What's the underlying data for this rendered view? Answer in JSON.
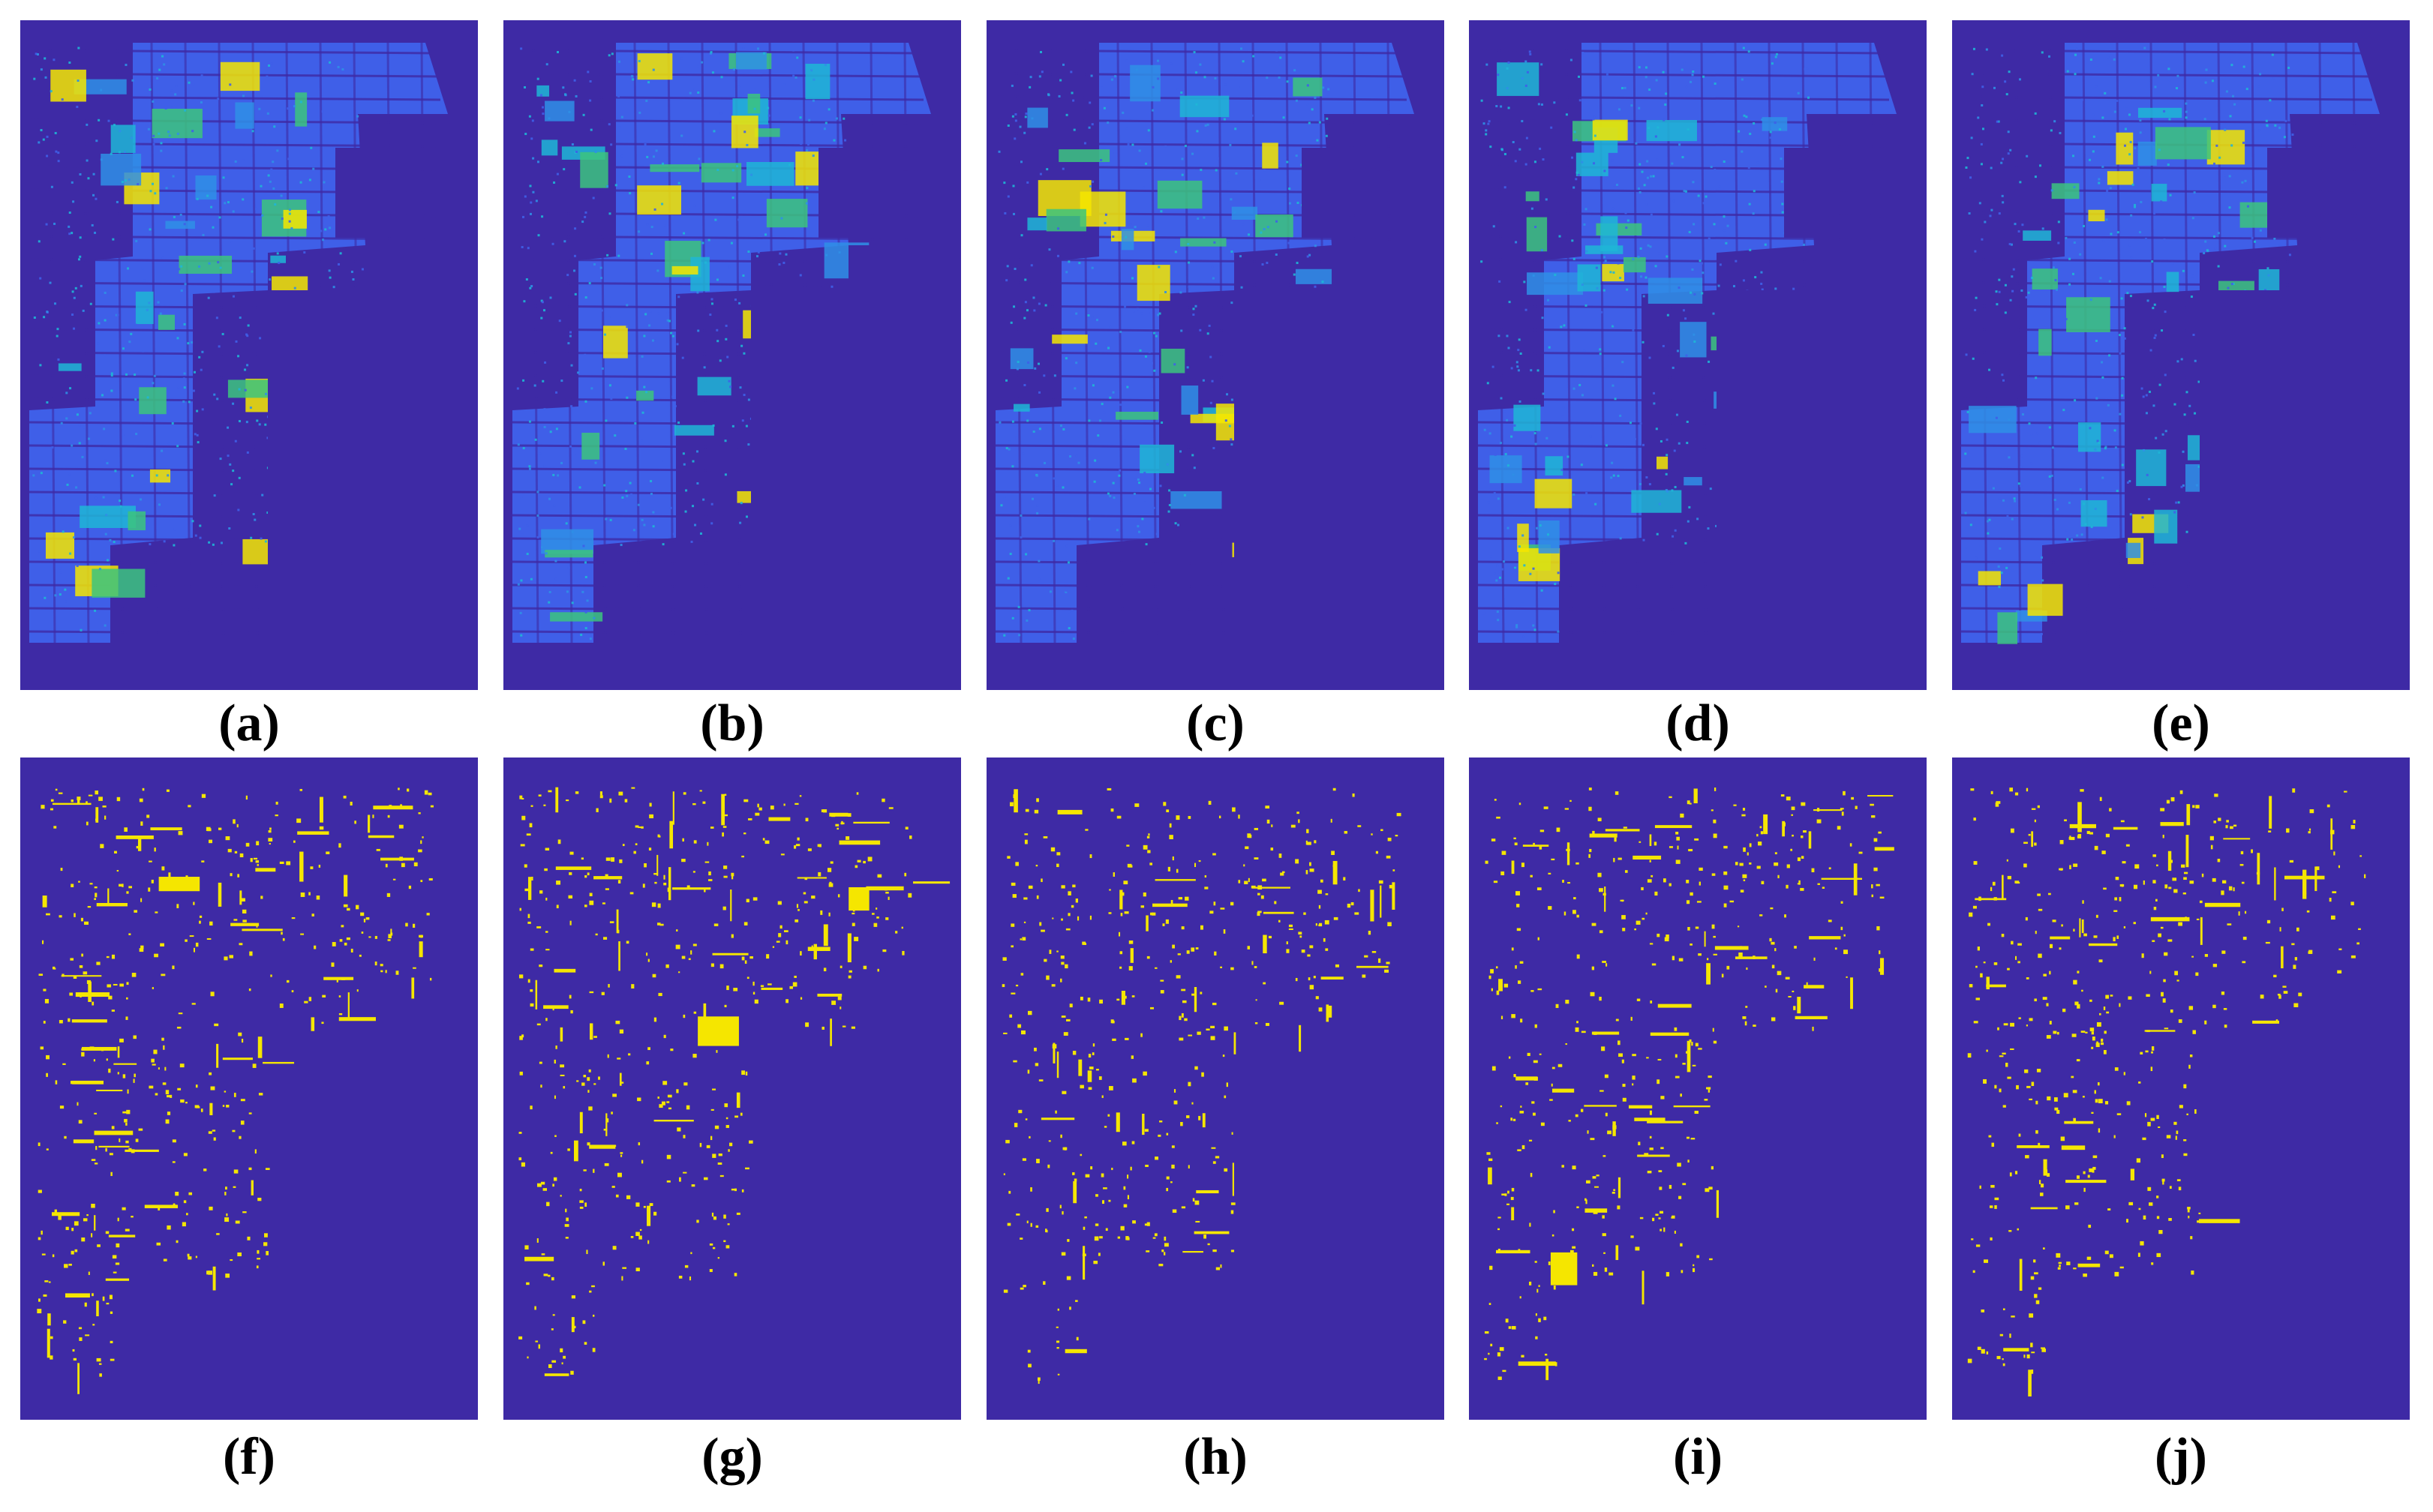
{
  "figure": {
    "background_color": "#3e2aa5",
    "field_color": "#3f5fe8",
    "class_colors": [
      "#3f5fe8",
      "#2f8fe6",
      "#1fb6d6",
      "#3cc47e",
      "#f5e600",
      "#e8a93a"
    ],
    "change_color": "#f5e600",
    "panels": [
      {
        "id": "a",
        "label": "(a)",
        "type": "classification-map"
      },
      {
        "id": "b",
        "label": "(b)",
        "type": "classification-map"
      },
      {
        "id": "c",
        "label": "(c)",
        "type": "classification-map"
      },
      {
        "id": "d",
        "label": "(d)",
        "type": "classification-map"
      },
      {
        "id": "e",
        "label": "(e)",
        "type": "classification-map"
      },
      {
        "id": "f",
        "label": "(f)",
        "type": "change-map"
      },
      {
        "id": "g",
        "label": "(g)",
        "type": "change-map"
      },
      {
        "id": "h",
        "label": "(h)",
        "type": "change-map"
      },
      {
        "id": "i",
        "label": "(i)",
        "type": "change-map"
      },
      {
        "id": "j",
        "label": "(j)",
        "type": "change-map"
      }
    ]
  }
}
